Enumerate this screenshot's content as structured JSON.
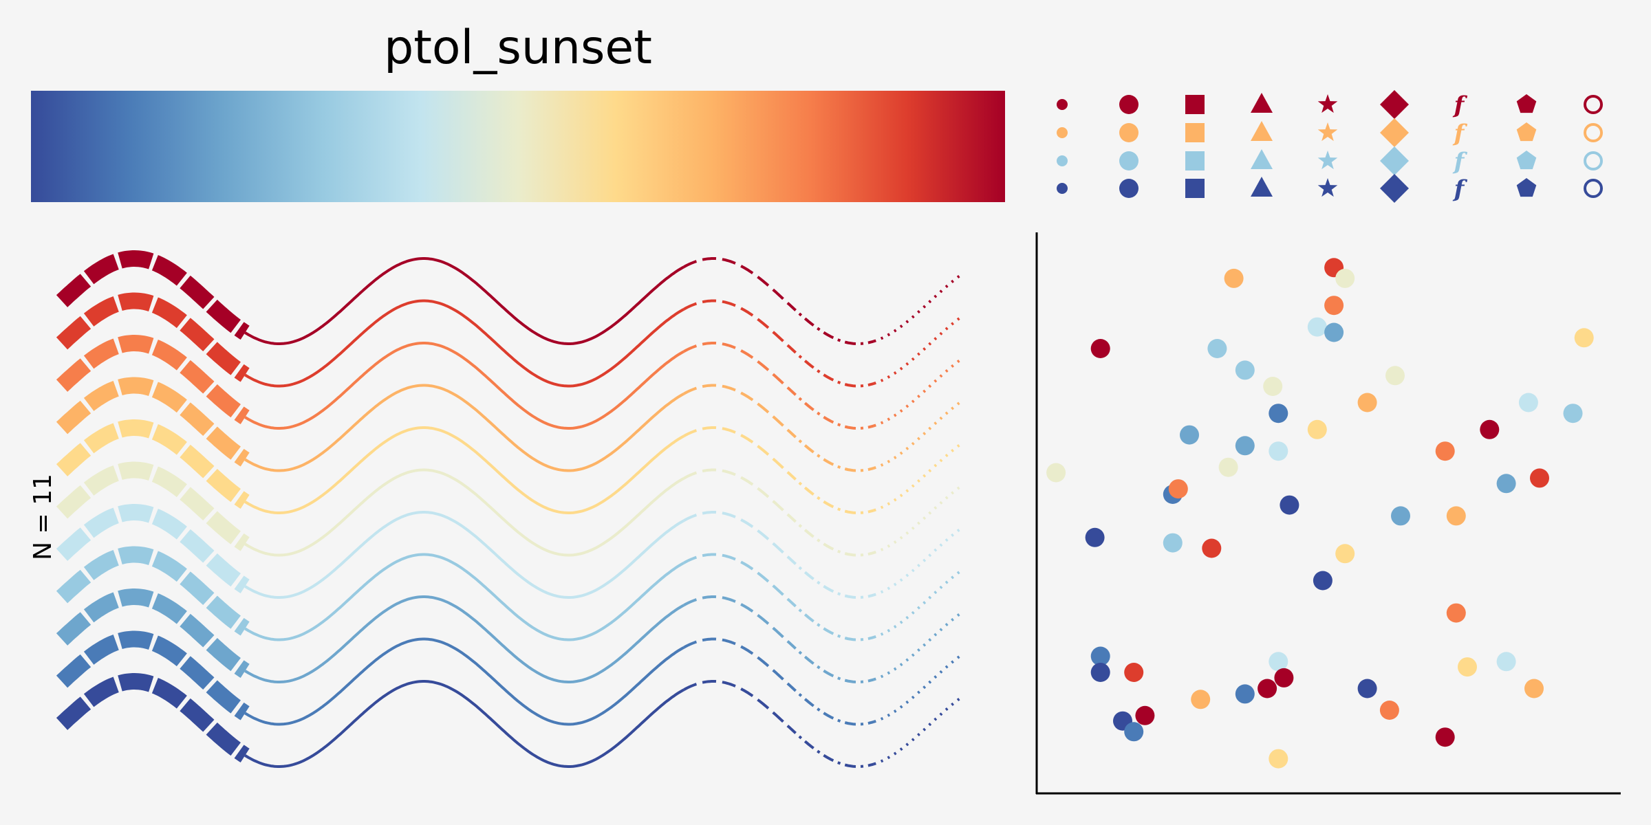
{
  "chart_data": [
    {
      "type": "colormap",
      "title": "ptol_sunset",
      "colors": [
        "#364B9A",
        "#4A7BB7",
        "#6EA6CD",
        "#98CAE1",
        "#C2E4EF",
        "#EAECCC",
        "#FEDA8B",
        "#FDB366",
        "#F67E4B",
        "#DD3D2D",
        "#A50026"
      ]
    },
    {
      "type": "line",
      "ylabel": "N = 11",
      "n_series": 11,
      "series_colors": [
        "#A50026",
        "#DD3D2D",
        "#F67E4B",
        "#FDB366",
        "#FEDA8B",
        "#EAECCC",
        "#C2E4EF",
        "#98CAE1",
        "#6EA6CD",
        "#4A7BB7",
        "#364B9A"
      ],
      "x": [
        0,
        2,
        4,
        6,
        8,
        10,
        12,
        14,
        16,
        18,
        20,
        22,
        24
      ],
      "y_base": [
        0.0,
        0.91,
        -0.76,
        -0.28,
        0.99,
        -0.54,
        -0.54,
        0.99,
        -0.29,
        -0.75,
        0.91,
        0.0,
        -0.91
      ],
      "line_styles": [
        "thick-dashed",
        "solid",
        "dashed",
        "dash-dot",
        "dotted"
      ]
    },
    {
      "type": "marker_legend",
      "markers": [
        "point",
        "circle",
        "square",
        "triangle",
        "star",
        "diamond",
        "f",
        "pentagon",
        "open-circle"
      ],
      "row_colors": [
        "#A50026",
        "#FDB366",
        "#98CAE1",
        "#364B9A"
      ]
    },
    {
      "type": "scatter",
      "points": [
        {
          "x": 0.01,
          "y": 0.57,
          "c": "#EAECCC"
        },
        {
          "x": 0.09,
          "y": 0.8,
          "c": "#A50026"
        },
        {
          "x": 0.08,
          "y": 0.45,
          "c": "#364B9A"
        },
        {
          "x": 0.09,
          "y": 0.23,
          "c": "#4A7BB7"
        },
        {
          "x": 0.09,
          "y": 0.2,
          "c": "#364B9A"
        },
        {
          "x": 0.15,
          "y": 0.2,
          "c": "#DD3D2D"
        },
        {
          "x": 0.13,
          "y": 0.11,
          "c": "#364B9A"
        },
        {
          "x": 0.15,
          "y": 0.09,
          "c": "#4A7BB7"
        },
        {
          "x": 0.17,
          "y": 0.12,
          "c": "#A50026"
        },
        {
          "x": 0.25,
          "y": 0.64,
          "c": "#6EA6CD"
        },
        {
          "x": 0.22,
          "y": 0.53,
          "c": "#4A7BB7"
        },
        {
          "x": 0.23,
          "y": 0.54,
          "c": "#F67E4B"
        },
        {
          "x": 0.22,
          "y": 0.44,
          "c": "#98CAE1"
        },
        {
          "x": 0.29,
          "y": 0.43,
          "c": "#DD3D2D"
        },
        {
          "x": 0.27,
          "y": 0.15,
          "c": "#FDB366"
        },
        {
          "x": 0.33,
          "y": 0.93,
          "c": "#FDB366"
        },
        {
          "x": 0.3,
          "y": 0.8,
          "c": "#98CAE1"
        },
        {
          "x": 0.35,
          "y": 0.76,
          "c": "#98CAE1"
        },
        {
          "x": 0.35,
          "y": 0.62,
          "c": "#6EA6CD"
        },
        {
          "x": 0.32,
          "y": 0.58,
          "c": "#EAECCC"
        },
        {
          "x": 0.35,
          "y": 0.16,
          "c": "#4A7BB7"
        },
        {
          "x": 0.4,
          "y": 0.73,
          "c": "#EAECCC"
        },
        {
          "x": 0.41,
          "y": 0.68,
          "c": "#4A7BB7"
        },
        {
          "x": 0.41,
          "y": 0.61,
          "c": "#C2E4EF"
        },
        {
          "x": 0.43,
          "y": 0.51,
          "c": "#364B9A"
        },
        {
          "x": 0.41,
          "y": 0.22,
          "c": "#C2E4EF"
        },
        {
          "x": 0.39,
          "y": 0.17,
          "c": "#A50026"
        },
        {
          "x": 0.42,
          "y": 0.19,
          "c": "#A50026"
        },
        {
          "x": 0.41,
          "y": 0.04,
          "c": "#FEDA8B"
        },
        {
          "x": 0.48,
          "y": 0.84,
          "c": "#C2E4EF"
        },
        {
          "x": 0.51,
          "y": 0.95,
          "c": "#DD3D2D"
        },
        {
          "x": 0.53,
          "y": 0.93,
          "c": "#EAECCC"
        },
        {
          "x": 0.51,
          "y": 0.88,
          "c": "#F67E4B"
        },
        {
          "x": 0.51,
          "y": 0.83,
          "c": "#6EA6CD"
        },
        {
          "x": 0.48,
          "y": 0.65,
          "c": "#FEDA8B"
        },
        {
          "x": 0.49,
          "y": 0.37,
          "c": "#364B9A"
        },
        {
          "x": 0.53,
          "y": 0.42,
          "c": "#FEDA8B"
        },
        {
          "x": 0.57,
          "y": 0.7,
          "c": "#FDB366"
        },
        {
          "x": 0.62,
          "y": 0.75,
          "c": "#EAECCC"
        },
        {
          "x": 0.63,
          "y": 0.49,
          "c": "#6EA6CD"
        },
        {
          "x": 0.57,
          "y": 0.17,
          "c": "#364B9A"
        },
        {
          "x": 0.61,
          "y": 0.13,
          "c": "#F67E4B"
        },
        {
          "x": 0.71,
          "y": 0.61,
          "c": "#F67E4B"
        },
        {
          "x": 0.73,
          "y": 0.49,
          "c": "#FDB366"
        },
        {
          "x": 0.73,
          "y": 0.31,
          "c": "#F67E4B"
        },
        {
          "x": 0.71,
          "y": 0.08,
          "c": "#A50026"
        },
        {
          "x": 0.79,
          "y": 0.65,
          "c": "#A50026"
        },
        {
          "x": 0.86,
          "y": 0.7,
          "c": "#C2E4EF"
        },
        {
          "x": 0.82,
          "y": 0.55,
          "c": "#6EA6CD"
        },
        {
          "x": 0.88,
          "y": 0.56,
          "c": "#DD3D2D"
        },
        {
          "x": 0.75,
          "y": 0.21,
          "c": "#FEDA8B"
        },
        {
          "x": 0.82,
          "y": 0.22,
          "c": "#C2E4EF"
        },
        {
          "x": 0.87,
          "y": 0.17,
          "c": "#FDB366"
        },
        {
          "x": 0.96,
          "y": 0.82,
          "c": "#FEDA8B"
        },
        {
          "x": 0.94,
          "y": 0.68,
          "c": "#98CAE1"
        }
      ]
    }
  ]
}
